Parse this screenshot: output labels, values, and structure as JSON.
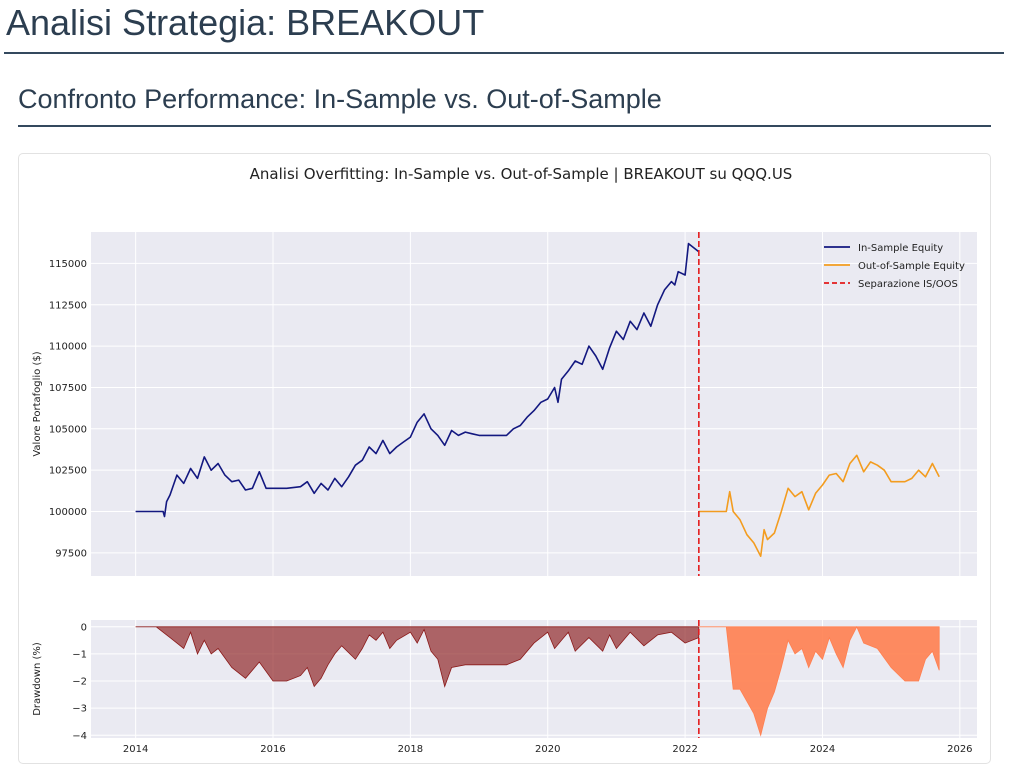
{
  "page": {
    "title": "Analisi Strategia: BREAKOUT",
    "section_title": "Confronto Performance: In-Sample vs. Out-of-Sample"
  },
  "chart_data": {
    "type": "line",
    "title": "Analisi Overfitting: In-Sample vs. Out-of-Sample | BREAKOUT su QQQ.US",
    "colors": {
      "in_sample": "#131880",
      "out_of_sample": "#f39c1f",
      "separator": "#e41a1c",
      "dd_in_sample": "#8b1a1a",
      "dd_out_of_sample": "#ff7f50",
      "plot_bg": "#eaeaf2",
      "grid": "#ffffff"
    },
    "separation_date": 2022.2,
    "legend": {
      "placement": "top-right",
      "entries": [
        "In-Sample Equity",
        "Out-of-Sample Equity",
        "Separazione IS/OOS"
      ]
    },
    "x_axis": {
      "range": [
        2013.35,
        2026.25
      ],
      "ticks": [
        2014,
        2016,
        2018,
        2020,
        2022,
        2024,
        2026
      ],
      "tick_labels": [
        "2014",
        "2016",
        "2018",
        "2020",
        "2022",
        "2024",
        "2026"
      ]
    },
    "equity": {
      "ylabel": "Valore Portafoglio ($)",
      "ylim": [
        96100,
        116900
      ],
      "ticks": [
        97500,
        100000,
        102500,
        105000,
        107500,
        110000,
        112500,
        115000
      ],
      "tick_labels": [
        "97500",
        "100000",
        "102500",
        "105000",
        "107500",
        "110000",
        "112500",
        "115000"
      ],
      "series": [
        {
          "name": "In-Sample Equity",
          "x": [
            2014.0,
            2014.2,
            2014.4,
            2014.42,
            2014.45,
            2014.5,
            2014.6,
            2014.7,
            2014.8,
            2014.9,
            2015.0,
            2015.1,
            2015.2,
            2015.3,
            2015.4,
            2015.5,
            2015.6,
            2015.7,
            2015.8,
            2015.9,
            2016.0,
            2016.2,
            2016.4,
            2016.5,
            2016.6,
            2016.7,
            2016.8,
            2016.9,
            2017.0,
            2017.1,
            2017.2,
            2017.3,
            2017.4,
            2017.5,
            2017.6,
            2017.7,
            2017.8,
            2017.9,
            2018.0,
            2018.1,
            2018.2,
            2018.3,
            2018.4,
            2018.5,
            2018.6,
            2018.7,
            2018.8,
            2018.9,
            2019.0,
            2019.2,
            2019.4,
            2019.5,
            2019.6,
            2019.7,
            2019.8,
            2019.9,
            2020.0,
            2020.1,
            2020.15,
            2020.2,
            2020.3,
            2020.4,
            2020.5,
            2020.6,
            2020.7,
            2020.8,
            2020.9,
            2021.0,
            2021.1,
            2021.2,
            2021.3,
            2021.4,
            2021.5,
            2021.6,
            2021.7,
            2021.8,
            2021.85,
            2021.9,
            2022.0,
            2022.05,
            2022.2
          ],
          "y": [
            100000,
            100000,
            100000,
            99700,
            100600,
            101000,
            102200,
            101700,
            102600,
            102000,
            103300,
            102500,
            102900,
            102200,
            101800,
            101900,
            101300,
            101400,
            102400,
            101400,
            101400,
            101400,
            101500,
            101800,
            101100,
            101700,
            101300,
            102000,
            101500,
            102100,
            102800,
            103100,
            103900,
            103500,
            104300,
            103500,
            103900,
            104200,
            104500,
            105400,
            105900,
            105000,
            104600,
            104000,
            104900,
            104600,
            104800,
            104700,
            104600,
            104600,
            104600,
            105000,
            105200,
            105700,
            106100,
            106600,
            106800,
            107500,
            106600,
            108000,
            108500,
            109100,
            108900,
            110000,
            109400,
            108600,
            109900,
            110900,
            110400,
            111500,
            111000,
            112000,
            111200,
            112500,
            113400,
            113900,
            113700,
            114500,
            114300,
            116200,
            115700
          ]
        },
        {
          "name": "Out-of-Sample Equity",
          "x": [
            2022.2,
            2022.4,
            2022.6,
            2022.65,
            2022.7,
            2022.8,
            2022.9,
            2023.0,
            2023.1,
            2023.15,
            2023.2,
            2023.3,
            2023.4,
            2023.5,
            2023.6,
            2023.7,
            2023.8,
            2023.9,
            2024.0,
            2024.1,
            2024.2,
            2024.3,
            2024.4,
            2024.5,
            2024.6,
            2024.7,
            2024.8,
            2024.9,
            2025.0,
            2025.1,
            2025.2,
            2025.3,
            2025.4,
            2025.5,
            2025.6,
            2025.7
          ],
          "y": [
            100000,
            100000,
            100000,
            101200,
            100000,
            99500,
            98600,
            98100,
            97300,
            98900,
            98300,
            98700,
            100000,
            101400,
            100900,
            101200,
            100100,
            101100,
            101600,
            102200,
            102300,
            101800,
            102900,
            103400,
            102400,
            103000,
            102800,
            102500,
            101800,
            101800,
            101800,
            102000,
            102500,
            102100,
            102900,
            102100
          ]
        }
      ]
    },
    "drawdown": {
      "ylabel": "Drawdown (%)",
      "ylim": [
        -4.1,
        0.25
      ],
      "ticks": [
        0,
        -1,
        -2,
        -3,
        -4
      ],
      "tick_labels": [
        "0",
        "−1",
        "−2",
        "−3",
        "−4"
      ],
      "series": [
        {
          "name": "In-Sample Drawdown",
          "x": [
            2014.0,
            2014.3,
            2014.5,
            2014.7,
            2014.8,
            2014.9,
            2015.0,
            2015.1,
            2015.2,
            2015.4,
            2015.6,
            2015.8,
            2016.0,
            2016.2,
            2016.4,
            2016.5,
            2016.6,
            2016.7,
            2016.8,
            2016.9,
            2017.0,
            2017.2,
            2017.3,
            2017.4,
            2017.5,
            2017.6,
            2017.7,
            2017.8,
            2018.0,
            2018.1,
            2018.2,
            2018.3,
            2018.4,
            2018.5,
            2018.6,
            2018.8,
            2019.0,
            2019.2,
            2019.4,
            2019.6,
            2019.8,
            2020.0,
            2020.1,
            2020.2,
            2020.3,
            2020.4,
            2020.6,
            2020.8,
            2020.9,
            2021.0,
            2021.2,
            2021.4,
            2021.6,
            2021.8,
            2022.0,
            2022.2
          ],
          "y": [
            0,
            0,
            -0.4,
            -0.8,
            -0.2,
            -1.0,
            -0.5,
            -1.0,
            -0.8,
            -1.5,
            -1.9,
            -1.3,
            -2.0,
            -2.0,
            -1.8,
            -1.5,
            -2.2,
            -1.9,
            -1.4,
            -1.0,
            -0.7,
            -1.2,
            -0.8,
            -0.3,
            -0.5,
            -0.2,
            -0.8,
            -0.5,
            -0.2,
            -0.6,
            -0.1,
            -0.9,
            -1.2,
            -2.2,
            -1.5,
            -1.4,
            -1.4,
            -1.4,
            -1.4,
            -1.2,
            -0.6,
            -0.2,
            -0.8,
            -0.5,
            -0.2,
            -0.9,
            -0.4,
            -0.9,
            -0.3,
            -0.8,
            -0.2,
            -0.7,
            -0.3,
            -0.2,
            -0.6,
            -0.4
          ]
        },
        {
          "name": "Out-of-Sample Drawdown",
          "x": [
            2022.2,
            2022.6,
            2022.7,
            2022.8,
            2023.0,
            2023.1,
            2023.2,
            2023.3,
            2023.4,
            2023.5,
            2023.6,
            2023.7,
            2023.8,
            2023.9,
            2024.0,
            2024.1,
            2024.2,
            2024.3,
            2024.4,
            2024.5,
            2024.6,
            2024.8,
            2025.0,
            2025.2,
            2025.4,
            2025.5,
            2025.6,
            2025.7
          ],
          "y": [
            0,
            0,
            -2.3,
            -2.3,
            -3.2,
            -4.0,
            -3.0,
            -2.4,
            -1.5,
            -0.5,
            -1.0,
            -0.8,
            -1.5,
            -0.9,
            -1.2,
            -0.4,
            -1.0,
            -1.5,
            -0.5,
            0,
            -0.6,
            -0.8,
            -1.5,
            -2.0,
            -2.0,
            -1.2,
            -0.9,
            -1.6
          ]
        }
      ]
    }
  }
}
